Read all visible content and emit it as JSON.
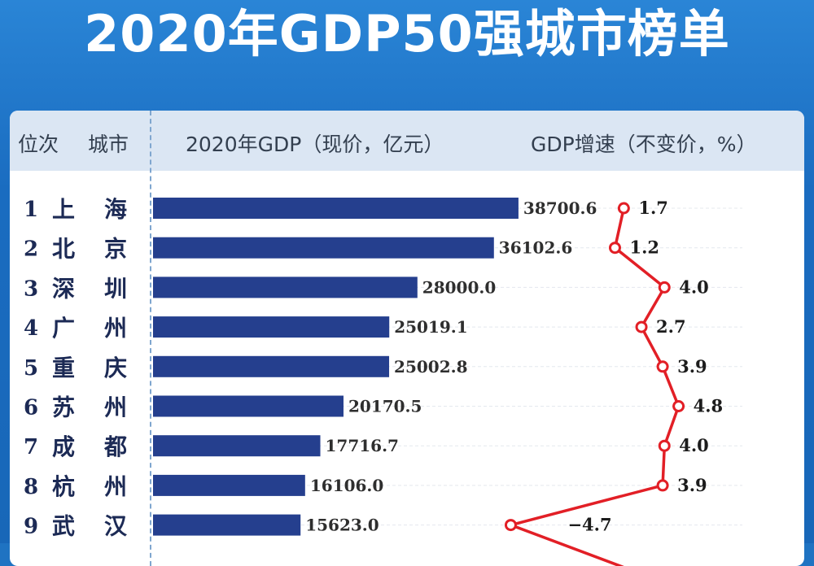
{
  "title": "2020年GDP50强城市榜单",
  "header": {
    "rank": "位次",
    "city": "城市",
    "gdp": "2020年GDP（现价，亿元）",
    "growth": "GDP增速（不变价，%）"
  },
  "colors": {
    "background": "#1f73c2",
    "bar": "#253f8e",
    "line": "#e21f26",
    "header_bg": "#dbe6f3"
  },
  "chart_data": {
    "type": "bar",
    "title": "2020年GDP50强城市榜单",
    "categories": [
      "上海",
      "北京",
      "深圳",
      "广州",
      "重庆",
      "苏州",
      "成都",
      "杭州",
      "武汉"
    ],
    "ranks": [
      "1",
      "2",
      "3",
      "4",
      "5",
      "6",
      "7",
      "8",
      "9"
    ],
    "series": [
      {
        "name": "2020年GDP（现价，亿元）",
        "type": "bar",
        "values": [
          38700.6,
          36102.6,
          28000.0,
          25019.1,
          25002.8,
          20170.5,
          17716.7,
          16106.0,
          15623.0
        ],
        "labels": [
          "38700.6",
          "36102.6",
          "28000.0",
          "25019.1",
          "25002.8",
          "20170.5",
          "17716.7",
          "16106.0",
          "15623.0"
        ]
      },
      {
        "name": "GDP增速（不变价，%）",
        "type": "line",
        "values": [
          1.7,
          1.2,
          4.0,
          2.7,
          3.9,
          4.8,
          4.0,
          3.9,
          -4.7
        ],
        "labels": [
          "1.7",
          "1.2",
          "4.0",
          "2.7",
          "3.9",
          "4.8",
          "4.0",
          "3.9",
          "−4.7"
        ]
      }
    ],
    "orientation": "horizontal",
    "grid": false,
    "legend": "none"
  }
}
